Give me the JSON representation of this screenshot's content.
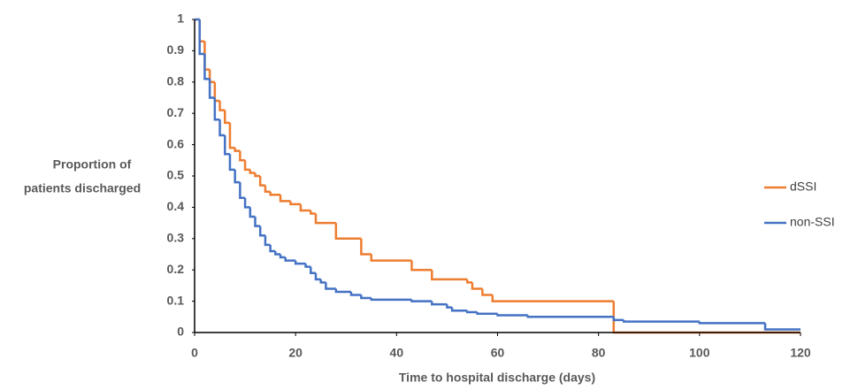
{
  "chart_data": {
    "type": "line",
    "step": "post",
    "xlabel": "Time to hospital discharge (days)",
    "ylabel": [
      "Proportion of",
      "patients discharged"
    ],
    "xlim": [
      0,
      120
    ],
    "xticks": [
      0,
      20,
      40,
      60,
      80,
      100,
      120
    ],
    "ylim": [
      0,
      1
    ],
    "yticks": [
      0,
      0.1,
      0.2,
      0.3,
      0.4,
      0.5,
      0.6,
      0.7,
      0.8,
      0.9,
      1
    ],
    "grid": false,
    "legend": "right",
    "series": [
      {
        "name": "dSSI",
        "color": "#ed7d31",
        "x": [
          0,
          1,
          2,
          3,
          4,
          5,
          6,
          7,
          8,
          9,
          10,
          11,
          12,
          13,
          14,
          15,
          17,
          19,
          21,
          23,
          24,
          28,
          33,
          35,
          43,
          47,
          54,
          55,
          57,
          59,
          83,
          120
        ],
        "values": [
          1,
          0.93,
          0.84,
          0.8,
          0.74,
          0.71,
          0.67,
          0.59,
          0.58,
          0.55,
          0.52,
          0.51,
          0.5,
          0.47,
          0.45,
          0.44,
          0.42,
          0.41,
          0.39,
          0.38,
          0.35,
          0.3,
          0.25,
          0.23,
          0.2,
          0.17,
          0.16,
          0.14,
          0.12,
          0.1,
          0,
          0
        ]
      },
      {
        "name": "non-SSI",
        "color": "#4472c4",
        "x": [
          0,
          1,
          2,
          3,
          4,
          5,
          6,
          7,
          8,
          9,
          10,
          11,
          12,
          13,
          14,
          15,
          16,
          17,
          18,
          20,
          22,
          23,
          24,
          25,
          26,
          28,
          31,
          33,
          35,
          43,
          47,
          50,
          51,
          54,
          56,
          60,
          66,
          83,
          85,
          100,
          113,
          120
        ],
        "values": [
          1,
          0.89,
          0.81,
          0.75,
          0.68,
          0.63,
          0.57,
          0.52,
          0.48,
          0.43,
          0.4,
          0.37,
          0.34,
          0.31,
          0.28,
          0.26,
          0.25,
          0.24,
          0.23,
          0.22,
          0.21,
          0.19,
          0.17,
          0.16,
          0.14,
          0.13,
          0.12,
          0.11,
          0.105,
          0.1,
          0.09,
          0.08,
          0.07,
          0.065,
          0.06,
          0.055,
          0.05,
          0.04,
          0.035,
          0.03,
          0.01,
          0.01
        ]
      }
    ]
  }
}
